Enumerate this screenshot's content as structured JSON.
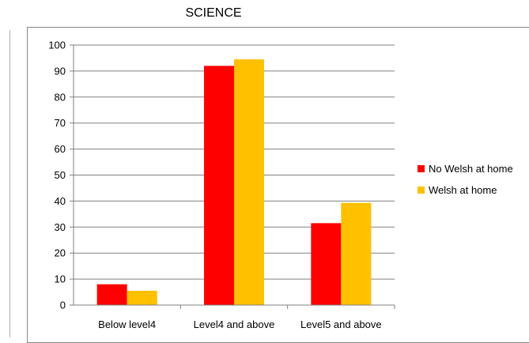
{
  "chart_data": {
    "type": "bar",
    "title": "SCIENCE",
    "categories": [
      "Below level4",
      "Level4 and above",
      "Level5 and above"
    ],
    "series": [
      {
        "name": "No Welsh at home",
        "values": [
          8,
          92,
          31.5
        ],
        "color": "#ff0000"
      },
      {
        "name": "Welsh at home",
        "values": [
          5.5,
          94.5,
          39.3
        ],
        "color": "#ffc000"
      }
    ],
    "ylim": [
      0,
      100
    ],
    "yticks": [
      "0",
      "10",
      "20",
      "30",
      "40",
      "50",
      "60",
      "70",
      "80",
      "90",
      "100"
    ],
    "grid": true,
    "legend": "right"
  }
}
